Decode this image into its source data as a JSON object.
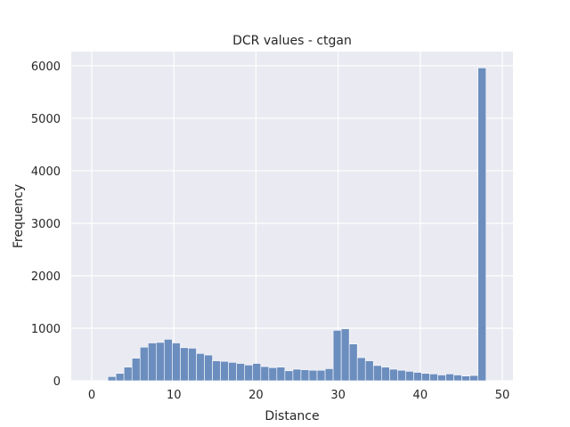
{
  "chart_data": {
    "type": "bar",
    "title": "DCR values - ctgan",
    "xlabel": "Distance",
    "ylabel": "Frequency",
    "xlim": [
      -2.5,
      51.3
    ],
    "ylim": [
      0,
      6270
    ],
    "xticks": [
      0,
      10,
      20,
      30,
      40,
      50
    ],
    "yticks": [
      0,
      1000,
      2000,
      3000,
      4000,
      5000,
      6000
    ],
    "grid": true,
    "bin_width": 0.98,
    "bin_start": 1.96,
    "values": [
      80,
      140,
      260,
      430,
      640,
      720,
      730,
      790,
      720,
      630,
      620,
      520,
      490,
      380,
      370,
      350,
      330,
      300,
      330,
      270,
      250,
      260,
      190,
      220,
      210,
      200,
      200,
      230,
      960,
      990,
      700,
      440,
      380,
      290,
      260,
      220,
      200,
      180,
      160,
      140,
      130,
      110,
      130,
      110,
      90,
      100,
      5960
    ],
    "colors": {
      "bar": "#6c8ebf",
      "background": "#eaeaf2",
      "grid": "#ffffff"
    }
  }
}
